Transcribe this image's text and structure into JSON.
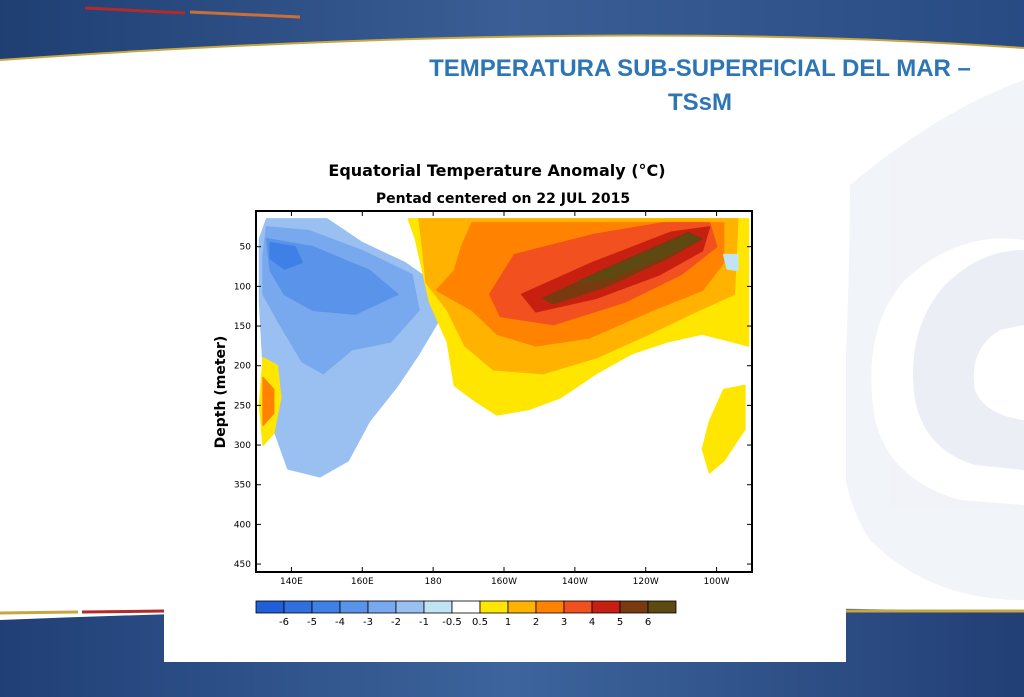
{
  "slide": {
    "title": "TEMPERATURA SUB-SUPERFICIAL DEL MAR – TSsM",
    "colors": {
      "navy": "#1f3f73",
      "accent_blue": "#2e75b6",
      "gold": "#c9a645",
      "red": "#b22a2a"
    }
  },
  "chart_data": {
    "type": "heatmap",
    "title": "Equatorial Temperature Anomaly (°C)",
    "subtitle": "Pentad centered on 22 JUL 2015",
    "xlabel": "",
    "ylabel": "Depth (meter)",
    "x_range": [
      130,
      270
    ],
    "x_ticks": [
      {
        "label": "140E",
        "lon": 140
      },
      {
        "label": "160E",
        "lon": 160
      },
      {
        "label": "180",
        "lon": 180
      },
      {
        "label": "160W",
        "lon": 200
      },
      {
        "label": "140W",
        "lon": 220
      },
      {
        "label": "120W",
        "lon": 240
      },
      {
        "label": "100W",
        "lon": 260
      }
    ],
    "y_range": [
      5,
      460
    ],
    "y_ticks": [
      50,
      100,
      150,
      200,
      250,
      300,
      350,
      400,
      450
    ],
    "y_reversed": true,
    "colorbar": {
      "labels": [
        "-6",
        "-5",
        "-4",
        "-3",
        "-2",
        "-1",
        "-0.5",
        "0.5",
        "1",
        "2",
        "3",
        "4",
        "5",
        "6"
      ],
      "levels": [
        -6,
        -5,
        -4,
        -3,
        -2,
        -1,
        -0.5,
        0.5,
        1,
        2,
        3,
        4,
        5,
        6
      ],
      "colors": [
        "#1f5fd8",
        "#2f6fe0",
        "#3f80e6",
        "#5a93ea",
        "#78a8ee",
        "#9ac0f2",
        "#c0e4f4",
        "#ffffff",
        "#ffe600",
        "#ffb300",
        "#ff8200",
        "#f2501e",
        "#c82010",
        "#7a3a10",
        "#5c4a12"
      ]
    },
    "regions": [
      {
        "name": "cold anomaly west pacific",
        "level": -1,
        "points": [
          [
            133,
            15
          ],
          [
            150,
            15
          ],
          [
            160,
            45
          ],
          [
            172,
            70
          ],
          [
            180,
            95
          ],
          [
            182,
            140
          ],
          [
            176,
            185
          ],
          [
            170,
            225
          ],
          [
            162,
            270
          ],
          [
            156,
            320
          ],
          [
            148,
            340
          ],
          [
            139,
            330
          ],
          [
            135,
            280
          ],
          [
            132,
            200
          ],
          [
            131,
            120
          ],
          [
            131,
            40
          ]
        ]
      },
      {
        "name": "cold anomaly core",
        "level": -2,
        "points": [
          [
            133,
            25
          ],
          [
            145,
            30
          ],
          [
            160,
            55
          ],
          [
            174,
            85
          ],
          [
            176,
            130
          ],
          [
            168,
            170
          ],
          [
            157,
            180
          ],
          [
            149,
            210
          ],
          [
            143,
            195
          ],
          [
            137,
            150
          ],
          [
            132,
            110
          ],
          [
            132,
            60
          ]
        ]
      },
      {
        "name": "cold anomaly center",
        "level": -3,
        "points": [
          [
            133,
            40
          ],
          [
            146,
            50
          ],
          [
            162,
            80
          ],
          [
            170,
            110
          ],
          [
            158,
            135
          ],
          [
            146,
            130
          ],
          [
            138,
            110
          ],
          [
            134,
            80
          ]
        ]
      },
      {
        "name": "cold anomaly peak",
        "level": -4,
        "points": [
          [
            134,
            45
          ],
          [
            141,
            50
          ],
          [
            143,
            70
          ],
          [
            138,
            78
          ],
          [
            134,
            65
          ]
        ]
      },
      {
        "name": "warm anomaly east pacific",
        "level": 0.5,
        "points": [
          [
            173,
            15
          ],
          [
            269,
            15
          ],
          [
            269,
            175
          ],
          [
            256,
            160
          ],
          [
            246,
            170
          ],
          [
            236,
            185
          ],
          [
            226,
            210
          ],
          [
            216,
            240
          ],
          [
            207,
            255
          ],
          [
            198,
            262
          ],
          [
            192,
            245
          ],
          [
            186,
            225
          ],
          [
            184,
            170
          ],
          [
            179,
            120
          ],
          [
            177,
            80
          ],
          [
            175,
            40
          ]
        ]
      },
      {
        "name": "warm anomaly 1",
        "level": 1,
        "points": [
          [
            176,
            15
          ],
          [
            266,
            15
          ],
          [
            265,
            110
          ],
          [
            255,
            130
          ],
          [
            241,
            160
          ],
          [
            226,
            190
          ],
          [
            211,
            210
          ],
          [
            197,
            205
          ],
          [
            189,
            175
          ],
          [
            184,
            130
          ],
          [
            178,
            95
          ],
          [
            177,
            50
          ]
        ]
      },
      {
        "name": "warm anomaly 2",
        "level": 2,
        "points": [
          [
            191,
            20
          ],
          [
            262,
            20
          ],
          [
            262,
            70
          ],
          [
            256,
            105
          ],
          [
            242,
            130
          ],
          [
            224,
            165
          ],
          [
            209,
            175
          ],
          [
            198,
            160
          ],
          [
            191,
            130
          ],
          [
            181,
            105
          ],
          [
            186,
            80
          ],
          [
            188,
            50
          ]
        ]
      },
      {
        "name": "warm anomaly 3",
        "level": 3,
        "points": [
          [
            203,
            60
          ],
          [
            225,
            35
          ],
          [
            245,
            20
          ],
          [
            258,
            20
          ],
          [
            260,
            50
          ],
          [
            250,
            85
          ],
          [
            234,
            120
          ],
          [
            214,
            148
          ],
          [
            199,
            138
          ],
          [
            196,
            110
          ]
        ]
      },
      {
        "name": "warm anomaly 4",
        "level": 4,
        "points": [
          [
            205,
            110
          ],
          [
            225,
            70
          ],
          [
            247,
            32
          ],
          [
            258,
            25
          ],
          [
            256,
            55
          ],
          [
            244,
            85
          ],
          [
            226,
            115
          ],
          [
            209,
            132
          ]
        ]
      },
      {
        "name": "warm anomaly 5",
        "level": 5,
        "points": [
          [
            211,
            115
          ],
          [
            230,
            75
          ],
          [
            252,
            32
          ],
          [
            256,
            40
          ],
          [
            246,
            65
          ],
          [
            229,
            100
          ],
          [
            214,
            122
          ]
        ]
      },
      {
        "name": "warm anomaly 6",
        "level": 6,
        "points": [
          [
            221,
            95
          ],
          [
            238,
            62
          ],
          [
            252,
            35
          ],
          [
            255,
            40
          ],
          [
            245,
            62
          ],
          [
            230,
            90
          ]
        ]
      },
      {
        "name": "far east warm patch",
        "level": 0.5,
        "points": [
          [
            262,
            230
          ],
          [
            268,
            225
          ],
          [
            268,
            280
          ],
          [
            262,
            320
          ],
          [
            258,
            335
          ],
          [
            256,
            305
          ],
          [
            258,
            270
          ]
        ]
      },
      {
        "name": "west deep warm patch",
        "level": 0.5,
        "points": [
          [
            132,
            190
          ],
          [
            136,
            200
          ],
          [
            137,
            240
          ],
          [
            135,
            285
          ],
          [
            132,
            300
          ],
          [
            131,
            250
          ]
        ]
      },
      {
        "name": "west deep warm core",
        "level": 2,
        "points": [
          [
            132,
            215
          ],
          [
            135,
            230
          ],
          [
            135,
            260
          ],
          [
            132,
            275
          ]
        ]
      },
      {
        "name": "east surface gap",
        "level": -0.5,
        "points": [
          [
            262,
            60
          ],
          [
            266,
            60
          ],
          [
            266,
            80
          ],
          [
            263,
            78
          ]
        ]
      }
    ]
  }
}
